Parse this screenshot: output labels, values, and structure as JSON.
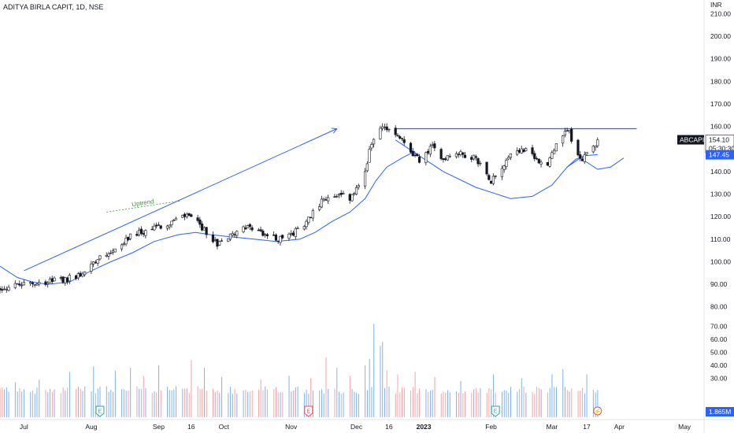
{
  "header": {
    "title": "ADITYA BIRLA CAPIT, 1D, NSE"
  },
  "chart_data": {
    "type": "candlestick",
    "symbol": "ABCAPITAL",
    "currency": "INR",
    "ylim": [
      82,
      214
    ],
    "yticks": [
      210,
      200,
      190,
      180,
      170,
      160,
      150,
      140,
      130,
      120,
      110,
      100,
      90,
      80
    ],
    "ytick_labels": [
      "210.00",
      "200.00",
      "190.00",
      "180.00",
      "170.00",
      "160.00",
      "150.00",
      "140.00",
      "130.00",
      "120.00",
      "110.00",
      "100.00",
      "90.00",
      "80.00"
    ],
    "volume_ylim": [
      0,
      80
    ],
    "volume_ticks": [
      70,
      60,
      50,
      40,
      30
    ],
    "volume_tick_labels": [
      "70.00",
      "60.00",
      "50.00",
      "40.00",
      "30.00"
    ],
    "x_start": "2022-06-20",
    "x_end": "2023-05-10",
    "xticks": [
      {
        "date": "2022-07-01",
        "label": "Jul"
      },
      {
        "date": "2022-08-01",
        "label": "Aug"
      },
      {
        "date": "2022-09-01",
        "label": "Sep"
      },
      {
        "date": "2022-09-16",
        "label": "16"
      },
      {
        "date": "2022-10-01",
        "label": "Oct"
      },
      {
        "date": "2022-11-01",
        "label": "Nov"
      },
      {
        "date": "2022-12-01",
        "label": "Dec"
      },
      {
        "date": "2022-12-16",
        "label": "16"
      },
      {
        "date": "2023-01-01",
        "label": "2023"
      },
      {
        "date": "2023-02-01",
        "label": "Feb"
      },
      {
        "date": "2023-03-01",
        "label": "Mar"
      },
      {
        "date": "2023-03-17",
        "label": "17"
      },
      {
        "date": "2023-04-01",
        "label": "Apr"
      },
      {
        "date": "2023-05-01",
        "label": "May"
      }
    ],
    "price_path": [
      [
        "2022-06-20",
        88
      ],
      [
        "2022-07-01",
        90
      ],
      [
        "2022-07-10",
        91
      ],
      [
        "2022-07-20",
        92
      ],
      [
        "2022-07-28",
        95
      ],
      [
        "2022-08-05",
        103
      ],
      [
        "2022-08-12",
        105
      ],
      [
        "2022-08-20",
        112
      ],
      [
        "2022-08-28",
        114
      ],
      [
        "2022-09-05",
        117
      ],
      [
        "2022-09-10",
        119
      ],
      [
        "2022-09-15",
        121
      ],
      [
        "2022-09-20",
        116
      ],
      [
        "2022-09-28",
        108
      ],
      [
        "2022-10-05",
        112
      ],
      [
        "2022-10-10",
        116
      ],
      [
        "2022-10-18",
        113
      ],
      [
        "2022-10-25",
        110
      ],
      [
        "2022-11-01",
        112
      ],
      [
        "2022-11-05",
        115
      ],
      [
        "2022-11-10",
        120
      ],
      [
        "2022-11-15",
        127
      ],
      [
        "2022-11-22",
        130
      ],
      [
        "2022-11-28",
        128
      ],
      [
        "2022-12-02",
        133
      ],
      [
        "2022-12-05",
        140
      ],
      [
        "2022-12-08",
        153
      ],
      [
        "2022-12-11",
        158
      ],
      [
        "2022-12-14",
        160
      ],
      [
        "2022-12-19",
        157
      ],
      [
        "2022-12-26",
        149
      ],
      [
        "2022-12-30",
        145
      ],
      [
        "2023-01-05",
        151
      ],
      [
        "2023-01-10",
        146
      ],
      [
        "2023-01-17",
        148
      ],
      [
        "2023-01-25",
        146
      ],
      [
        "2023-02-01",
        136
      ],
      [
        "2023-02-05",
        141
      ],
      [
        "2023-02-10",
        148
      ],
      [
        "2023-02-16",
        150
      ],
      [
        "2023-02-22",
        145
      ],
      [
        "2023-02-26",
        142
      ],
      [
        "2023-03-02",
        150
      ],
      [
        "2023-03-06",
        156
      ],
      [
        "2023-03-09",
        158
      ],
      [
        "2023-03-12",
        147
      ],
      [
        "2023-03-15",
        145
      ],
      [
        "2023-03-20",
        151
      ],
      [
        "2023-03-22",
        154
      ]
    ],
    "last_price": 154.1,
    "last_price_label": "154.10",
    "countdown_label": "05:30:30",
    "moving_average": {
      "value_label": "147.45",
      "points": [
        [
          "2022-06-20",
          98
        ],
        [
          "2022-06-28",
          93
        ],
        [
          "2022-07-05",
          91
        ],
        [
          "2022-07-12",
          90
        ],
        [
          "2022-07-22",
          91
        ],
        [
          "2022-08-01",
          96
        ],
        [
          "2022-08-10",
          100
        ],
        [
          "2022-08-20",
          104
        ],
        [
          "2022-08-30",
          109
        ],
        [
          "2022-09-10",
          112
        ],
        [
          "2022-09-18",
          113
        ],
        [
          "2022-09-25",
          112
        ],
        [
          "2022-10-05",
          111
        ],
        [
          "2022-10-15",
          110
        ],
        [
          "2022-10-25",
          109
        ],
        [
          "2022-11-05",
          110
        ],
        [
          "2022-11-12",
          113
        ],
        [
          "2022-11-20",
          118
        ],
        [
          "2022-11-28",
          122
        ],
        [
          "2022-12-05",
          128
        ],
        [
          "2022-12-10",
          136
        ],
        [
          "2022-12-15",
          142
        ],
        [
          "2022-12-22",
          146
        ],
        [
          "2022-12-28",
          149
        ]
      ],
      "points2": [
        [
          "2023-03-08",
          142
        ],
        [
          "2023-03-12",
          145.5
        ],
        [
          "2023-03-16",
          147
        ],
        [
          "2023-03-22",
          147.5
        ]
      ]
    },
    "cup_curve": [
      [
        "2022-12-19",
        154
      ],
      [
        "2022-12-30",
        147
      ],
      [
        "2023-01-10",
        140
      ],
      [
        "2023-01-25",
        133
      ],
      [
        "2023-02-10",
        128
      ],
      [
        "2023-02-20",
        129
      ],
      [
        "2023-03-01",
        134
      ],
      [
        "2023-03-08",
        142
      ],
      [
        "2023-03-14",
        146
      ],
      [
        "2023-03-22",
        141
      ],
      [
        "2023-03-28",
        142
      ],
      [
        "2023-04-03",
        146
      ]
    ],
    "resistance": {
      "from": "2022-12-19",
      "to": "2023-04-09",
      "price": 159
    },
    "uptrend_arrow": {
      "from": [
        "2022-07-01",
        96
      ],
      "to": [
        "2022-11-22",
        159
      ]
    },
    "annotation": {
      "text": "Uptrend",
      "from": [
        "2022-08-08",
        122
      ],
      "to": [
        "2022-09-11",
        127
      ]
    },
    "volume_spikes": [
      [
        "2022-06-27",
        27
      ],
      [
        "2022-07-08",
        29
      ],
      [
        "2022-07-22",
        35
      ],
      [
        "2022-08-02",
        39
      ],
      [
        "2022-08-12",
        36
      ],
      [
        "2022-08-19",
        38
      ],
      [
        "2022-08-25",
        32
      ],
      [
        "2022-09-01",
        40
      ],
      [
        "2022-09-10",
        36
      ],
      [
        "2022-09-16",
        44
      ],
      [
        "2022-09-22",
        38
      ],
      [
        "2022-09-30",
        31
      ],
      [
        "2022-10-08",
        30
      ],
      [
        "2022-10-18",
        29
      ],
      [
        "2022-10-31",
        32
      ],
      [
        "2022-11-10",
        30
      ],
      [
        "2022-11-17",
        46
      ],
      [
        "2022-11-22",
        38
      ],
      [
        "2022-11-28",
        32
      ],
      [
        "2022-12-05",
        40
      ],
      [
        "2022-12-07",
        45
      ],
      [
        "2022-12-09",
        72
      ],
      [
        "2022-12-12",
        55
      ],
      [
        "2022-12-13",
        58
      ],
      [
        "2022-12-15",
        36
      ],
      [
        "2022-12-20",
        33
      ],
      [
        "2022-12-28",
        35
      ],
      [
        "2023-01-06",
        31
      ],
      [
        "2023-01-18",
        28
      ],
      [
        "2023-02-02",
        33
      ],
      [
        "2023-02-15",
        30
      ],
      [
        "2023-03-01",
        33
      ],
      [
        "2023-03-06",
        37
      ],
      [
        "2023-03-12",
        34
      ],
      [
        "2023-03-17",
        33
      ]
    ],
    "volume_last_label": "1.865M",
    "event_markers": [
      {
        "date": "2022-08-05",
        "glyph": "E",
        "kind": "earnings"
      },
      {
        "date": "2022-11-09",
        "glyph": "E",
        "kind": "earnings-red"
      },
      {
        "date": "2023-02-03",
        "glyph": "E",
        "kind": "earnings"
      },
      {
        "date": "2023-03-22",
        "glyph": "⚡",
        "kind": "split"
      }
    ]
  }
}
